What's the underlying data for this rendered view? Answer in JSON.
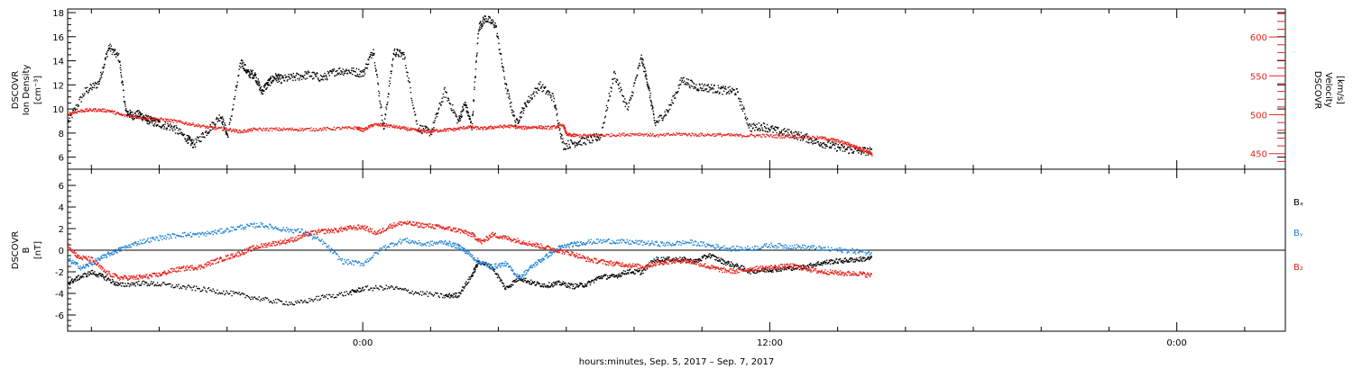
{
  "xaxis": {
    "title": "hours:minutes, Sep.  5, 2017 – Sep.  7, 2017",
    "range_hours": [
      -8.7,
      27.2
    ],
    "major_ticks": [
      {
        "value": 0,
        "label": "0:00"
      },
      {
        "value": 12,
        "label": "12:00"
      },
      {
        "value": 24,
        "label": "0:00"
      }
    ],
    "minor_step": 2
  },
  "chart_data": [
    {
      "id": "density_velocity",
      "type": "scatter",
      "ylabel_lines": [
        "DSCOVR",
        "Ion Density",
        "[cm⁻³]"
      ],
      "ylabel_right_lines": [
        "DSCOVR",
        "Velocity",
        "[km/s]"
      ],
      "ylim": [
        5.0,
        18.3
      ],
      "ylim_right": [
        430,
        636
      ],
      "yticks": [
        6,
        8,
        10,
        12,
        14,
        16,
        18
      ],
      "yticks_right": [
        450,
        500,
        550,
        600
      ],
      "series": [
        {
          "axis": "left",
          "color": "#000000",
          "x": [
            -8.7,
            -8.2,
            -7.8,
            -7.5,
            -7.2,
            -7.0,
            -6.8,
            -6.6,
            -6.4,
            -6.2,
            -6.0,
            -5.6,
            -5.2,
            -5.0,
            -4.6,
            -4.2,
            -4.0,
            -3.6,
            -3.4,
            -3.2,
            -3.0,
            -2.8,
            -2.6,
            -2.4,
            -2.0,
            -1.6,
            -1.2,
            -0.8,
            -0.4,
            0.0,
            0.3,
            0.6,
            0.9,
            1.2,
            1.6,
            2.0,
            2.4,
            2.8,
            3.0,
            3.2,
            3.4,
            3.6,
            3.9,
            4.2,
            4.5,
            4.8,
            5.2,
            5.6,
            5.9,
            6.3,
            6.7,
            7.0,
            7.4,
            7.8,
            8.2,
            8.4,
            8.6,
            9.0,
            9.4,
            9.8,
            10.2,
            10.6,
            11.0,
            11.4,
            11.8,
            12.2,
            12.6,
            13.0,
            13.4,
            13.8,
            14.2,
            14.6,
            15.0
          ],
          "y": [
            9.0,
            11.5,
            12.2,
            15.2,
            14.3,
            9.8,
            9.5,
            9.6,
            9.2,
            9.0,
            8.8,
            8.5,
            7.6,
            7.1,
            8.2,
            9.5,
            7.8,
            14.0,
            13.0,
            12.9,
            11.5,
            12.2,
            12.7,
            12.5,
            12.7,
            12.9,
            12.6,
            13.2,
            13.2,
            13.0,
            15.0,
            8.4,
            14.8,
            14.5,
            8.5,
            8.1,
            11.5,
            9.0,
            10.5,
            8.6,
            16.8,
            17.6,
            17.0,
            12.0,
            8.8,
            10.5,
            12.0,
            11.0,
            7.0,
            7.3,
            7.5,
            7.8,
            13.0,
            10.0,
            14.3,
            12.0,
            8.8,
            10.0,
            12.5,
            11.9,
            11.8,
            11.6,
            11.5,
            8.5,
            8.6,
            8.2,
            8.0,
            7.7,
            7.3,
            7.0,
            6.7,
            6.6,
            6.5
          ]
        },
        {
          "axis": "right",
          "color": "#e8231c",
          "x": [
            -8.7,
            -8.3,
            -7.9,
            -7.5,
            -7.1,
            -6.5,
            -6.0,
            -5.5,
            -5.0,
            -4.5,
            -4.0,
            -3.6,
            -3.2,
            -2.6,
            -2.0,
            -1.4,
            -0.8,
            -0.2,
            0.0,
            0.3,
            0.7,
            1.1,
            1.5,
            1.9,
            2.3,
            2.7,
            3.1,
            3.5,
            3.9,
            4.3,
            4.7,
            5.1,
            5.5,
            5.9,
            6.0,
            6.3,
            6.9,
            7.5,
            8.1,
            8.7,
            9.3,
            9.9,
            10.5,
            11.1,
            11.7,
            12.3,
            12.9,
            13.5,
            13.9,
            14.3,
            14.6,
            14.9,
            15.0
          ],
          "y": [
            502,
            506,
            507,
            506,
            500,
            497,
            495,
            492,
            488,
            484,
            482,
            479,
            482,
            482,
            482,
            482,
            483,
            484,
            481,
            488,
            487,
            484,
            481,
            479,
            481,
            482,
            485,
            483,
            485,
            486,
            484,
            485,
            484,
            487,
            475,
            474,
            474,
            475,
            476,
            474,
            476,
            475,
            475,
            474,
            474,
            473,
            473,
            471,
            468,
            463,
            458,
            453,
            449
          ]
        }
      ]
    },
    {
      "id": "magnetic_field",
      "type": "scatter",
      "ylabel_lines": [
        "DSCOVR",
        "B",
        "[nT]"
      ],
      "ylim": [
        -7.5,
        7.5
      ],
      "yticks": [
        -6,
        -4,
        -2,
        0,
        2,
        4,
        6
      ],
      "zero_line": true,
      "series": [
        {
          "name": "Bₓ",
          "color": "#000000",
          "x": [
            -8.7,
            -8.4,
            -8.0,
            -7.6,
            -7.2,
            -6.6,
            -6.0,
            -5.2,
            -4.4,
            -3.6,
            -2.8,
            -2.0,
            -1.2,
            -0.4,
            0.0,
            0.8,
            1.6,
            2.4,
            2.8,
            3.2,
            3.4,
            3.8,
            4.2,
            4.6,
            5.0,
            5.4,
            5.8,
            6.2,
            6.6,
            7.0,
            7.4,
            7.8,
            8.2,
            8.6,
            9.0,
            9.4,
            9.8,
            10.2,
            10.6,
            11.0,
            11.4,
            11.8,
            12.2,
            12.6,
            13.0,
            13.4,
            13.8,
            14.2,
            14.6,
            15.0
          ],
          "y": [
            -3.0,
            -2.5,
            -2.0,
            -2.5,
            -3.2,
            -3.0,
            -3.1,
            -3.4,
            -3.7,
            -4.1,
            -4.6,
            -4.9,
            -4.3,
            -3.9,
            -3.5,
            -3.4,
            -3.9,
            -4.2,
            -4.1,
            -2.3,
            -1.0,
            -1.5,
            -3.5,
            -2.5,
            -3.0,
            -3.2,
            -3.0,
            -3.3,
            -3.1,
            -2.4,
            -2.4,
            -1.9,
            -2.0,
            -0.8,
            -0.8,
            -0.8,
            -1.0,
            -0.4,
            -1.0,
            -1.4,
            -1.9,
            -1.8,
            -1.7,
            -1.6,
            -1.5,
            -1.2,
            -1.0,
            -0.9,
            -0.8,
            -0.7
          ]
        },
        {
          "name": "Bᵧ",
          "color": "#1a7fd4",
          "x": [
            -8.7,
            -8.3,
            -7.9,
            -7.5,
            -7.1,
            -6.6,
            -6.0,
            -5.4,
            -4.8,
            -4.2,
            -3.6,
            -3.0,
            -2.4,
            -1.8,
            -1.2,
            -0.6,
            0.0,
            0.6,
            1.2,
            1.8,
            2.4,
            2.8,
            3.0,
            3.4,
            3.8,
            4.2,
            4.6,
            5.0,
            5.4,
            5.8,
            6.2,
            6.6,
            7.2,
            7.8,
            8.4,
            9.0,
            9.6,
            10.2,
            10.8,
            11.4,
            12.0,
            12.6,
            13.2,
            13.8,
            14.4,
            15.0
          ],
          "y": [
            -0.8,
            -1.6,
            -1.0,
            -0.3,
            0.2,
            0.8,
            1.2,
            1.5,
            1.5,
            1.8,
            2.2,
            2.4,
            2.0,
            1.8,
            0.8,
            -1.0,
            -1.2,
            0.3,
            1.0,
            0.6,
            0.8,
            0.4,
            0.0,
            -1.0,
            -1.5,
            -1.2,
            -2.5,
            -1.4,
            -0.5,
            0.3,
            0.6,
            0.8,
            0.9,
            0.8,
            0.7,
            0.6,
            0.8,
            0.5,
            0.2,
            0.2,
            0.5,
            0.4,
            0.3,
            0.1,
            0.0,
            -0.2
          ]
        },
        {
          "name": "B₂",
          "color": "#e8231c",
          "x": [
            -8.7,
            -8.4,
            -8.0,
            -7.6,
            -7.2,
            -6.8,
            -6.4,
            -6.0,
            -5.6,
            -5.2,
            -4.8,
            -4.4,
            -4.0,
            -3.6,
            -3.2,
            -2.8,
            -2.4,
            -2.0,
            -1.6,
            -1.2,
            -0.8,
            -0.4,
            0.0,
            0.4,
            0.8,
            1.2,
            1.6,
            2.0,
            2.4,
            2.8,
            3.2,
            3.5,
            3.8,
            4.2,
            4.6,
            5.0,
            5.4,
            5.8,
            6.2,
            6.6,
            7.0,
            7.4,
            7.8,
            8.2,
            8.6,
            9.0,
            9.4,
            9.8,
            10.2,
            10.6,
            11.0,
            11.4,
            11.8,
            12.2,
            12.6,
            13.0,
            13.4,
            13.8,
            14.2,
            14.6,
            15.0
          ],
          "y": [
            0.5,
            -0.6,
            -0.8,
            -2.0,
            -2.5,
            -2.5,
            -2.4,
            -2.2,
            -1.8,
            -1.6,
            -1.5,
            -1.0,
            -0.6,
            -0.2,
            0.3,
            0.6,
            0.8,
            1.1,
            1.6,
            1.8,
            1.9,
            2.1,
            2.2,
            1.6,
            2.3,
            2.6,
            2.4,
            2.3,
            2.1,
            1.9,
            1.5,
            0.8,
            1.5,
            1.2,
            0.9,
            0.6,
            0.3,
            0.0,
            -0.3,
            -0.8,
            -1.0,
            -1.2,
            -1.3,
            -1.5,
            -1.2,
            -1.0,
            -0.9,
            -1.1,
            -1.5,
            -1.8,
            -1.9,
            -1.7,
            -1.6,
            -1.5,
            -1.4,
            -1.6,
            -1.9,
            -2.0,
            -2.1,
            -2.1,
            -2.3
          ]
        }
      ]
    }
  ]
}
